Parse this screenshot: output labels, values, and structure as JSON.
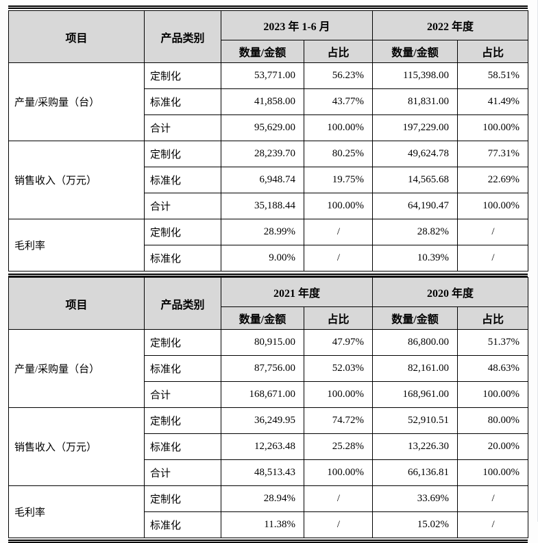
{
  "colors": {
    "header_bg": "#d8d8d8",
    "border": "#000000",
    "page_bg": "#fdfdfd",
    "text": "#000000"
  },
  "tables": [
    {
      "header": {
        "item": "项目",
        "category": "产品类别",
        "period1": "2023 年 1-6 月",
        "period2": "2022 年度",
        "qty": "数量/金额",
        "ratio": "占比"
      },
      "groups": [
        {
          "label": "产量/采购量（台）",
          "rows": [
            {
              "category": "定制化",
              "cells": [
                "53,771.00",
                "56.23%",
                "115,398.00",
                "58.51%"
              ]
            },
            {
              "category": "标准化",
              "cells": [
                "41,858.00",
                "43.77%",
                "81,831.00",
                "41.49%"
              ]
            },
            {
              "category": "合计",
              "cells": [
                "95,629.00",
                "100.00%",
                "197,229.00",
                "100.00%"
              ]
            }
          ]
        },
        {
          "label": "销售收入（万元）",
          "rows": [
            {
              "category": "定制化",
              "cells": [
                "28,239.70",
                "80.25%",
                "49,624.78",
                "77.31%"
              ]
            },
            {
              "category": "标准化",
              "cells": [
                "6,948.74",
                "19.75%",
                "14,565.68",
                "22.69%"
              ]
            },
            {
              "category": "合计",
              "cells": [
                "35,188.44",
                "100.00%",
                "64,190.47",
                "100.00%"
              ]
            }
          ]
        },
        {
          "label": "毛利率",
          "rows": [
            {
              "category": "定制化",
              "cells": [
                "28.99%",
                "/",
                "28.82%",
                "/"
              ]
            },
            {
              "category": "标准化",
              "cells": [
                "9.00%",
                "/",
                "10.39%",
                "/"
              ]
            }
          ]
        }
      ]
    },
    {
      "header": {
        "item": "项目",
        "category": "产品类别",
        "period1": "2021 年度",
        "period2": "2020 年度",
        "qty": "数量/金额",
        "ratio": "占比"
      },
      "groups": [
        {
          "label": "产量/采购量（台）",
          "rows": [
            {
              "category": "定制化",
              "cells": [
                "80,915.00",
                "47.97%",
                "86,800.00",
                "51.37%"
              ]
            },
            {
              "category": "标准化",
              "cells": [
                "87,756.00",
                "52.03%",
                "82,161.00",
                "48.63%"
              ]
            },
            {
              "category": "合计",
              "cells": [
                "168,671.00",
                "100.00%",
                "168,961.00",
                "100.00%"
              ]
            }
          ]
        },
        {
          "label": "销售收入（万元）",
          "rows": [
            {
              "category": "定制化",
              "cells": [
                "36,249.95",
                "74.72%",
                "52,910.51",
                "80.00%"
              ]
            },
            {
              "category": "标准化",
              "cells": [
                "12,263.48",
                "25.28%",
                "13,226.30",
                "20.00%"
              ]
            },
            {
              "category": "合计",
              "cells": [
                "48,513.43",
                "100.00%",
                "66,136.81",
                "100.00%"
              ]
            }
          ]
        },
        {
          "label": "毛利率",
          "rows": [
            {
              "category": "定制化",
              "cells": [
                "28.94%",
                "/",
                "33.69%",
                "/"
              ]
            },
            {
              "category": "标准化",
              "cells": [
                "11.38%",
                "/",
                "15.02%",
                "/"
              ]
            }
          ]
        }
      ]
    }
  ]
}
